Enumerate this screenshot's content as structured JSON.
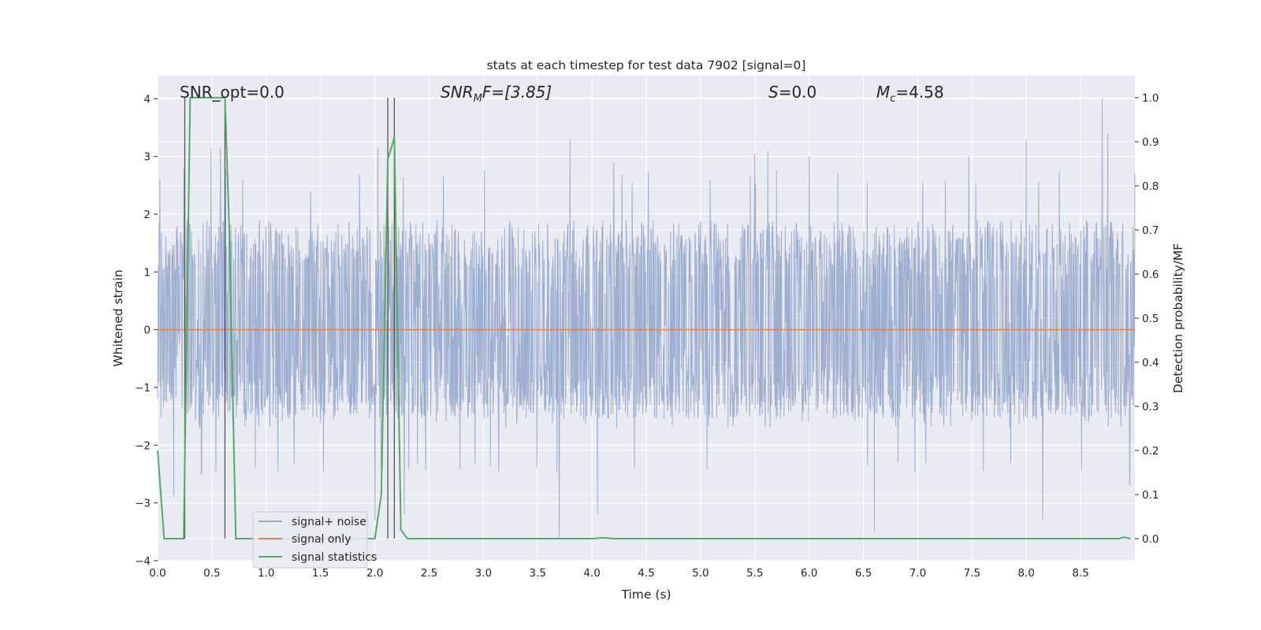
{
  "chart_data": {
    "type": "line",
    "title": "stats at each timestep for test data 7902 [signal=0]",
    "xlabel": "Time (s)",
    "ylabel": "Whitened strain",
    "ylabel_right": "Detection probability/MF",
    "xlim": [
      0.0,
      9.0
    ],
    "ylim": [
      -4.0,
      4.4
    ],
    "ylim_right": [
      -0.05,
      1.05
    ],
    "xticks": [
      "0.0",
      "0.5",
      "1.0",
      "1.5",
      "2.0",
      "2.5",
      "3.0",
      "3.5",
      "4.0",
      "4.5",
      "5.0",
      "5.5",
      "6.0",
      "6.5",
      "7.0",
      "7.5",
      "8.0",
      "8.5"
    ],
    "yticks": [
      "−4",
      "−3",
      "−2",
      "−1",
      "0",
      "1",
      "2",
      "3",
      "4"
    ],
    "yticks_right": [
      "0.0",
      "0.1",
      "0.2",
      "0.3",
      "0.4",
      "0.5",
      "0.6",
      "0.7",
      "0.8",
      "0.9",
      "1.0"
    ],
    "grid": true,
    "legend_position": "lower-left",
    "annotations": {
      "snr_opt": "SNR_opt=0.0",
      "snr_mf_main": "SNR",
      "snr_mf_sub": "M",
      "snr_mf_tail": "F=[3.85]",
      "s_main": "S",
      "s_tail": "=0.0",
      "mc_main": "M",
      "mc_sub": "c",
      "mc_tail": "=4.58"
    },
    "vertical_markers_x": [
      0.25,
      0.62,
      2.12,
      2.18
    ],
    "series": [
      {
        "name": "signal+ noise",
        "color": "#9aabcd",
        "axis": "left",
        "kind": "noise",
        "envelope": {
          "typical_upper": 1.9,
          "typical_lower": -1.4,
          "peaks": [
            [
              0.02,
              2.6
            ],
            [
              0.25,
              2.6
            ],
            [
              0.49,
              3.15
            ],
            [
              0.58,
              3.15
            ],
            [
              1.41,
              2.4
            ],
            [
              1.86,
              2.7
            ],
            [
              2.03,
              3.15
            ],
            [
              3.8,
              3.3
            ],
            [
              4.2,
              2.9
            ],
            [
              5.5,
              3.05
            ],
            [
              5.62,
              3.1
            ],
            [
              6.0,
              3.0
            ],
            [
              7.47,
              3.0
            ],
            [
              8.0,
              3.3
            ],
            [
              8.7,
              4.0
            ],
            [
              8.75,
              3.4
            ]
          ],
          "troughs": [
            [
              0.15,
              -2.9
            ],
            [
              0.4,
              -2.5
            ],
            [
              0.9,
              -2.4
            ],
            [
              2.0,
              -3.3
            ],
            [
              2.27,
              -3.2
            ],
            [
              3.7,
              -3.6
            ],
            [
              4.05,
              -3.2
            ],
            [
              6.6,
              -3.5
            ],
            [
              8.15,
              -3.3
            ],
            [
              8.95,
              -2.7
            ]
          ]
        }
      },
      {
        "name": "signal only",
        "color": "#dd8452",
        "axis": "left",
        "x": [
          0.0,
          9.0
        ],
        "y": [
          0.0,
          0.0
        ]
      },
      {
        "name": "signal statistics",
        "color": "#55a868",
        "axis": "right",
        "x": [
          0.0,
          0.06,
          0.12,
          0.18,
          0.24,
          0.3,
          0.36,
          0.42,
          0.48,
          0.54,
          0.6,
          0.62,
          0.66,
          0.72,
          0.78,
          0.84,
          1.2,
          1.6,
          2.0,
          2.06,
          2.12,
          2.18,
          2.24,
          2.3,
          2.4,
          3.0,
          4.0,
          4.1,
          4.2,
          4.5,
          6.0,
          8.0,
          8.85,
          8.9,
          8.96
        ],
        "y": [
          0.2,
          0.0,
          0.0,
          0.0,
          0.0,
          1.0,
          1.0,
          1.0,
          1.0,
          1.0,
          1.0,
          1.0,
          0.7,
          0.0,
          0.0,
          0.0,
          0.0,
          0.0,
          0.0,
          0.1,
          0.86,
          0.91,
          0.02,
          0.0,
          0.0,
          0.0,
          0.0,
          0.002,
          0.0,
          0.0,
          0.0,
          0.0,
          0.0,
          0.003,
          0.0
        ]
      }
    ]
  }
}
